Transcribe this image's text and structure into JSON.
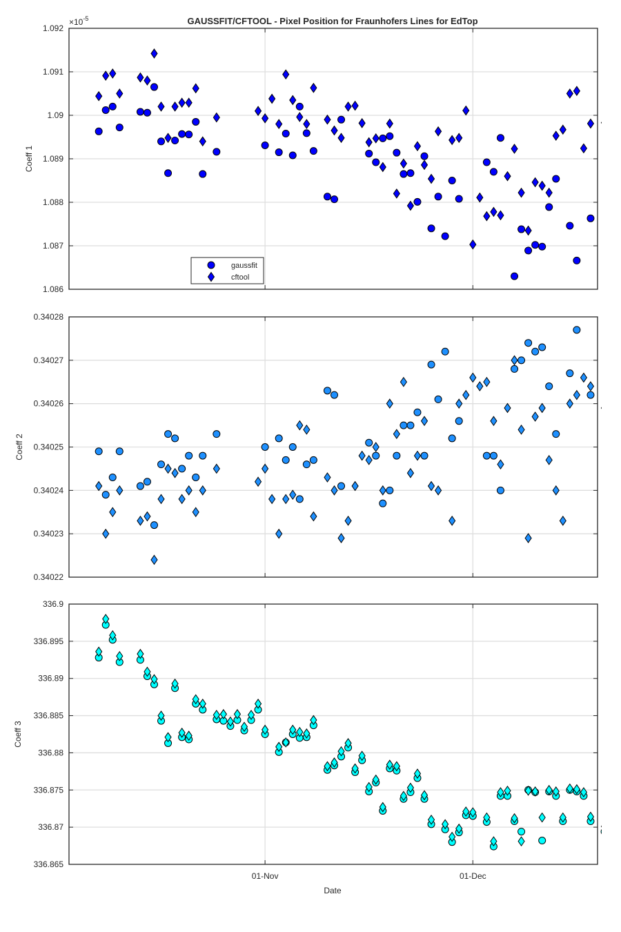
{
  "title": "GAUSSFIT/CFTOOL - Pixel Position for Fraunhofers Lines for EdTop",
  "xlabel": "Date",
  "x_ticks": [
    {
      "x": 31,
      "label": "01-Nov"
    },
    {
      "x": 61,
      "label": "01-Dec"
    }
  ],
  "colors": {
    "gaussfit_1": "#0000ff",
    "gaussfit_2": "#1e90ff",
    "gaussfit_3": "#00ffff",
    "edge": "#000000",
    "grid": "#dedede"
  },
  "chart_data": [
    {
      "type": "scatter",
      "ylabel": "Coeff 1",
      "exponent_label": "×10",
      "exponent_power": "-5",
      "xlim": [
        2.7,
        79
      ],
      "ylim": [
        1.086,
        1.092
      ],
      "yticks": [
        "1.086",
        "1.087",
        "1.088",
        "1.089",
        "1.09",
        "1.091",
        "1.092"
      ],
      "legend": {
        "placement": "bottom-left",
        "entries": [
          "gaussfit",
          "cftool"
        ]
      },
      "marker_color": "#0000ff",
      "series": [
        {
          "name": "gaussfit",
          "marker": "circle",
          "x": [
            7,
            8,
            9,
            10,
            13,
            14,
            15,
            16,
            17,
            18,
            19,
            20,
            21,
            22,
            24,
            31,
            33,
            34,
            35,
            36,
            37,
            38,
            40,
            41,
            42,
            46,
            47,
            48,
            49,
            50,
            51,
            52,
            53,
            54,
            55,
            56,
            57,
            58,
            59,
            63,
            64,
            65,
            67,
            68,
            69,
            70,
            71,
            72,
            73,
            75,
            76,
            78
          ],
          "y": [
            1.08963,
            1.09012,
            1.0902,
            1.08972,
            1.09008,
            1.09006,
            1.09065,
            1.0894,
            1.08867,
            1.08942,
            1.08957,
            1.08956,
            1.08985,
            1.08865,
            1.08916,
            1.08931,
            1.08915,
            1.08958,
            1.08908,
            1.0902,
            1.08959,
            1.08918,
            1.08813,
            1.08807,
            1.0899,
            1.08912,
            1.08892,
            1.08947,
            1.08952,
            1.08914,
            1.08865,
            1.08867,
            1.08801,
            1.08906,
            1.0874,
            1.08813,
            1.08722,
            1.0885,
            1.08808,
            1.08892,
            1.0887,
            1.08948,
            1.0863,
            1.08738,
            1.08689,
            1.08702,
            1.08698,
            1.08789,
            1.08854,
            1.08746,
            1.08666,
            1.08763
          ]
        },
        {
          "name": "cftool",
          "marker": "diamond",
          "x": [
            7,
            8,
            9,
            10,
            13,
            14,
            15,
            16,
            17,
            18,
            19,
            20,
            21,
            22,
            24,
            30,
            31,
            32,
            33,
            34,
            35,
            36,
            37,
            38,
            40,
            41,
            42,
            43,
            44,
            45,
            46,
            47,
            48,
            49,
            50,
            51,
            52,
            53,
            54,
            55,
            56,
            58,
            59,
            60,
            61,
            62,
            63,
            64,
            65,
            66,
            67,
            68,
            69,
            70,
            71,
            72,
            73,
            74,
            75,
            76,
            77,
            78,
            80,
            81
          ],
          "y": [
            1.09044,
            1.09091,
            1.09096,
            1.0905,
            1.09087,
            1.0908,
            1.09142,
            1.0902,
            1.08948,
            1.0902,
            1.09029,
            1.09029,
            1.09062,
            1.0894,
            1.08995,
            1.0901,
            1.08993,
            1.09038,
            1.0898,
            1.09094,
            1.09035,
            1.08996,
            1.0898,
            1.09063,
            1.0899,
            1.08965,
            1.08948,
            1.0902,
            1.09022,
            1.08982,
            1.08938,
            1.08947,
            1.08881,
            1.08981,
            1.0882,
            1.08889,
            1.08792,
            1.08929,
            1.08886,
            1.08854,
            1.08963,
            1.08943,
            1.08948,
            1.09011,
            1.08703,
            1.08811,
            1.08768,
            1.08778,
            1.0877,
            1.0886,
            1.08923,
            1.08822,
            1.08735,
            1.08846,
            1.08838,
            1.08822,
            1.08953,
            1.08967,
            1.0905,
            1.09056,
            1.08924,
            1.08981,
            1.08983,
            1.09025
          ]
        }
      ]
    },
    {
      "type": "scatter",
      "ylabel": "Coeff 2",
      "xlim": [
        2.7,
        79
      ],
      "ylim": [
        0.34022,
        0.34028
      ],
      "yticks": [
        "0.34022",
        "0.34023",
        "0.34024",
        "0.34025",
        "0.34026",
        "0.34027",
        "0.34028"
      ],
      "marker_color": "#1e90ff",
      "series": [
        {
          "name": "gaussfit",
          "marker": "circle",
          "x": [
            7,
            8,
            9,
            10,
            13,
            14,
            15,
            16,
            17,
            18,
            19,
            20,
            21,
            22,
            24,
            31,
            33,
            34,
            35,
            36,
            37,
            38,
            40,
            41,
            42,
            46,
            47,
            48,
            49,
            50,
            51,
            52,
            53,
            54,
            55,
            56,
            57,
            58,
            59,
            63,
            64,
            65,
            67,
            68,
            69,
            70,
            71,
            72,
            73,
            75,
            76,
            78
          ],
          "y": [
            0.340249,
            0.340239,
            0.340243,
            0.340249,
            0.340241,
            0.340242,
            0.340232,
            0.340246,
            0.340253,
            0.340252,
            0.340245,
            0.340248,
            0.340243,
            0.340248,
            0.340253,
            0.34025,
            0.340252,
            0.340247,
            0.34025,
            0.340238,
            0.340246,
            0.340247,
            0.340263,
            0.340262,
            0.340241,
            0.340251,
            0.340248,
            0.340237,
            0.34024,
            0.340248,
            0.340255,
            0.340255,
            0.340258,
            0.340248,
            0.340269,
            0.340261,
            0.340272,
            0.340252,
            0.340256,
            0.340248,
            0.340248,
            0.34024,
            0.340268,
            0.34027,
            0.340274,
            0.340272,
            0.340273,
            0.340264,
            0.340253,
            0.340267,
            0.340277,
            0.340262
          ]
        },
        {
          "name": "cftool",
          "marker": "diamond",
          "x": [
            7,
            8,
            9,
            10,
            13,
            14,
            15,
            16,
            17,
            18,
            19,
            20,
            21,
            22,
            24,
            30,
            31,
            32,
            33,
            34,
            35,
            36,
            37,
            38,
            40,
            41,
            42,
            43,
            44,
            45,
            46,
            47,
            48,
            49,
            50,
            51,
            52,
            53,
            54,
            55,
            56,
            58,
            59,
            60,
            61,
            62,
            63,
            64,
            65,
            66,
            67,
            68,
            69,
            70,
            71,
            72,
            73,
            74,
            75,
            76,
            77,
            78,
            80,
            81
          ],
          "y": [
            0.340241,
            0.34023,
            0.340235,
            0.34024,
            0.340233,
            0.340234,
            0.340224,
            0.340238,
            0.340245,
            0.340244,
            0.340238,
            0.34024,
            0.340235,
            0.34024,
            0.340245,
            0.340242,
            0.340245,
            0.340238,
            0.34023,
            0.340238,
            0.340239,
            0.340255,
            0.340254,
            0.340234,
            0.340243,
            0.34024,
            0.340229,
            0.340233,
            0.340241,
            0.340248,
            0.340247,
            0.34025,
            0.34024,
            0.34026,
            0.340253,
            0.340265,
            0.340244,
            0.340248,
            0.340256,
            0.340241,
            0.34024,
            0.340233,
            0.34026,
            0.340262,
            0.340266,
            0.340264,
            0.340265,
            0.340256,
            0.340246,
            0.340259,
            0.34027,
            0.340254,
            0.340229,
            0.340257,
            0.340259,
            0.340247,
            0.34024,
            0.340233,
            0.34026,
            0.340262,
            0.340266,
            0.340264,
            0.340259,
            0.34024
          ]
        }
      ]
    },
    {
      "type": "scatter",
      "ylabel": "Coeff 3",
      "xlim": [
        2.7,
        79
      ],
      "ylim": [
        336.865,
        336.9
      ],
      "yticks": [
        "336.865",
        "336.87",
        "336.875",
        "336.88",
        "336.885",
        "336.89",
        "336.895",
        "336.9"
      ],
      "marker_color": "#00ffff",
      "series": [
        {
          "name": "gaussfit",
          "marker": "circle",
          "x": [
            7,
            8,
            9,
            10,
            13,
            14,
            15,
            16,
            17,
            18,
            19,
            20,
            21,
            22,
            24,
            25,
            26,
            27,
            28,
            29,
            30,
            31,
            33,
            34,
            35,
            36,
            37,
            38,
            40,
            41,
            42,
            43,
            44,
            45,
            46,
            47,
            48,
            49,
            50,
            51,
            52,
            53,
            54,
            55,
            57,
            58,
            59,
            60,
            61,
            63,
            64,
            65,
            66,
            67,
            68,
            69,
            70,
            71,
            72,
            73,
            74,
            75,
            76,
            77,
            78,
            80,
            81
          ],
          "y": [
            336.8928,
            336.8972,
            336.8952,
            336.8922,
            336.8925,
            336.8903,
            336.8892,
            336.8843,
            336.8813,
            336.8887,
            336.8821,
            336.8818,
            336.8866,
            336.8858,
            336.8845,
            336.8843,
            336.8836,
            336.8844,
            336.883,
            336.8844,
            336.8858,
            336.8825,
            336.8801,
            336.8814,
            336.8825,
            336.882,
            336.8821,
            336.8837,
            336.8777,
            336.8783,
            336.8795,
            336.8807,
            336.8774,
            336.879,
            336.8748,
            336.876,
            336.8722,
            336.8779,
            336.8776,
            336.8738,
            336.8747,
            336.8766,
            336.8738,
            336.8704,
            336.8697,
            336.868,
            336.8693,
            336.8716,
            336.8715,
            336.8707,
            336.8674,
            336.8742,
            336.8742,
            336.8708,
            336.8694,
            336.875,
            336.8747,
            336.8682,
            336.8748,
            336.8742,
            336.8708,
            336.875,
            336.8748,
            336.8742,
            336.8708,
            336.8694,
            336.8748
          ]
        },
        {
          "name": "cftool",
          "marker": "diamond",
          "x": [
            7,
            8,
            9,
            10,
            13,
            14,
            15,
            16,
            17,
            18,
            19,
            20,
            21,
            22,
            24,
            25,
            26,
            27,
            28,
            29,
            30,
            31,
            33,
            34,
            35,
            36,
            37,
            38,
            40,
            41,
            42,
            43,
            44,
            45,
            46,
            47,
            48,
            49,
            50,
            51,
            52,
            53,
            54,
            55,
            57,
            58,
            59,
            60,
            61,
            63,
            64,
            65,
            66,
            67,
            68,
            69,
            70,
            71,
            72,
            73,
            74,
            75,
            76,
            77,
            78,
            80,
            81
          ],
          "y": [
            336.8936,
            336.898,
            336.8958,
            336.893,
            336.8933,
            336.8909,
            336.8899,
            336.885,
            336.8821,
            336.8893,
            336.8827,
            336.8823,
            336.8872,
            336.8866,
            336.8851,
            336.8852,
            336.8842,
            336.8852,
            336.8835,
            336.8851,
            336.8866,
            336.8831,
            336.8808,
            336.8814,
            336.8831,
            336.8828,
            336.8826,
            336.8844,
            336.8782,
            336.8787,
            336.8802,
            336.8813,
            336.8779,
            336.8796,
            336.8754,
            336.8764,
            336.8727,
            336.8784,
            336.8782,
            336.8742,
            336.8753,
            336.8772,
            336.8743,
            336.871,
            336.8704,
            336.8687,
            336.8698,
            336.8721,
            336.872,
            336.8713,
            336.8681,
            336.8747,
            336.8749,
            336.8712,
            336.8681,
            336.8749,
            336.8748,
            336.8713,
            336.875,
            336.8748,
            336.8713,
            336.8752,
            336.8751,
            336.8747,
            336.8714,
            336.8701,
            336.8754
          ]
        }
      ]
    }
  ]
}
